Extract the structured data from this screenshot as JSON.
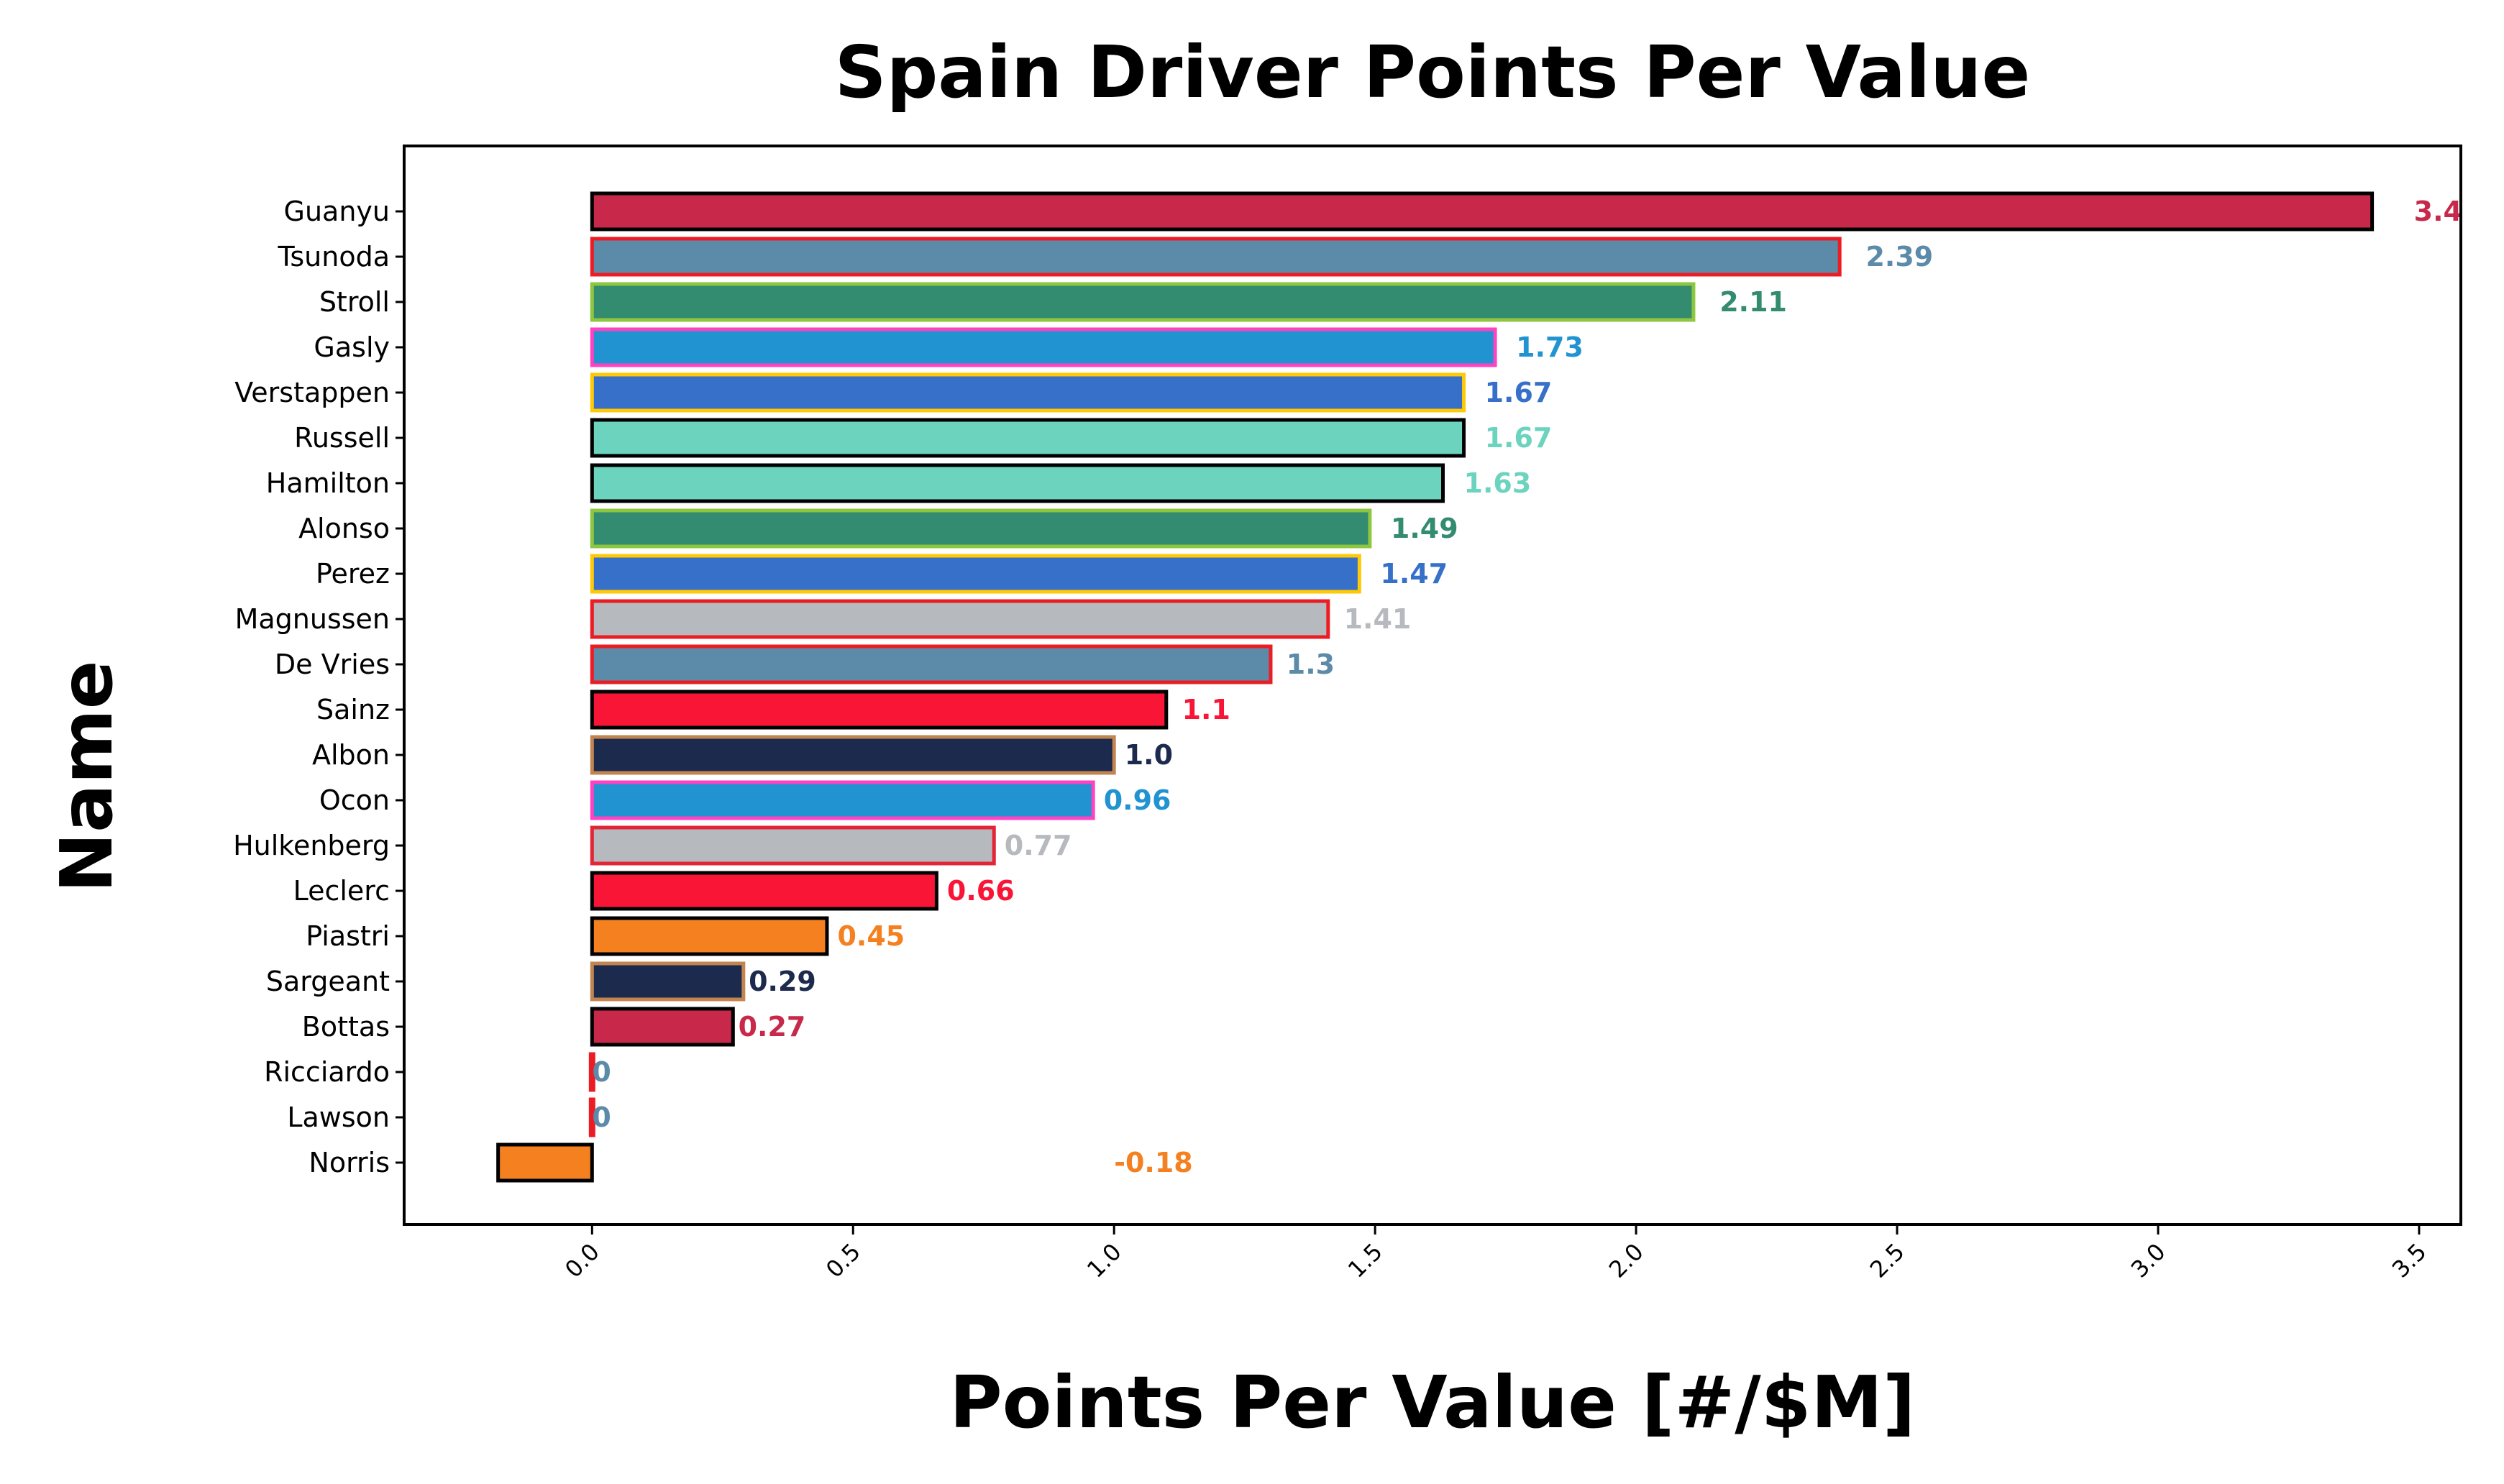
{
  "chart_data": {
    "type": "bar",
    "orientation": "horizontal",
    "title": "Spain Driver Points Per Value",
    "xlabel": "Points Per Value [#/$M]",
    "ylabel": "Name",
    "xlim": [
      -0.36,
      3.58
    ],
    "xticks": [
      0.0,
      0.5,
      1.0,
      1.5,
      2.0,
      2.5,
      3.0,
      3.5
    ],
    "xtick_labels": [
      "0.0",
      "0.5",
      "1.0",
      "1.5",
      "2.0",
      "2.5",
      "3.0",
      "3.5"
    ],
    "grid": false,
    "legend": "none",
    "categories": [
      "Guanyu",
      "Tsunoda",
      "Stroll",
      "Gasly",
      "Verstappen",
      "Russell",
      "Hamilton",
      "Alonso",
      "Perez",
      "Magnussen",
      "De Vries",
      "Sainz",
      "Albon",
      "Ocon",
      "Hulkenberg",
      "Leclerc",
      "Piastri",
      "Sargeant",
      "Bottas",
      "Ricciardo",
      "Lawson",
      "Norris"
    ],
    "values": [
      3.41,
      2.39,
      2.11,
      1.73,
      1.67,
      1.67,
      1.63,
      1.49,
      1.47,
      1.41,
      1.3,
      1.1,
      1.0,
      0.96,
      0.77,
      0.66,
      0.45,
      0.29,
      0.27,
      0,
      0,
      -0.18
    ],
    "value_labels": [
      "3.4",
      "2.39",
      "2.11",
      "1.73",
      "1.67",
      "1.67",
      "1.63",
      "1.49",
      "1.47",
      "1.41",
      "1.3",
      "1.1",
      "1.0",
      "0.96",
      "0.77",
      "0.66",
      "0.45",
      "0.29",
      "0.27",
      "0",
      "0",
      "-0.18"
    ],
    "fill_colors": [
      "#c8294a",
      "#5b8ba9",
      "#338b70",
      "#2293d1",
      "#3670c8",
      "#6cd3bf",
      "#6cd3bf",
      "#338b70",
      "#3670c8",
      "#b6b9bd",
      "#5b8ba9",
      "#f91536",
      "#1c2a4d",
      "#2293d1",
      "#b6b9bd",
      "#f91536",
      "#f58020",
      "#1c2a4d",
      "#c8294a",
      "#f91536",
      "#5b8ba9",
      "#f58020"
    ],
    "edge_colors": [
      "#000000",
      "#ec1c24",
      "#8dc63f",
      "#ff42c2",
      "#ffc906",
      "#000000",
      "#000000",
      "#8dc63f",
      "#ffc906",
      "#ec1c24",
      "#ec1c24",
      "#000000",
      "#c38550",
      "#ff42c2",
      "#e32636",
      "#000000",
      "#000000",
      "#c38550",
      "#000000",
      "#ec1c24",
      "#ec1c24",
      "#000000"
    ],
    "label_colors": [
      "#c8294a",
      "#5b8ba9",
      "#338b70",
      "#2293d1",
      "#3670c8",
      "#6cd3bf",
      "#6cd3bf",
      "#338b70",
      "#3670c8",
      "#b6b9bd",
      "#5b8ba9",
      "#f91536",
      "#1c2a4d",
      "#2293d1",
      "#b6b9bd",
      "#f91536",
      "#f58020",
      "#1c2a4d",
      "#c8294a",
      "#5b8ba9",
      "#5b8ba9",
      "#f58020"
    ],
    "value_label_x": [
      3.49,
      2.44,
      2.16,
      1.77,
      1.71,
      1.71,
      1.67,
      1.53,
      1.51,
      1.44,
      1.33,
      1.13,
      1.02,
      0.98,
      0.79,
      0.68,
      0.47,
      0.3,
      0.28,
      0.0,
      0.0,
      1.0
    ]
  }
}
